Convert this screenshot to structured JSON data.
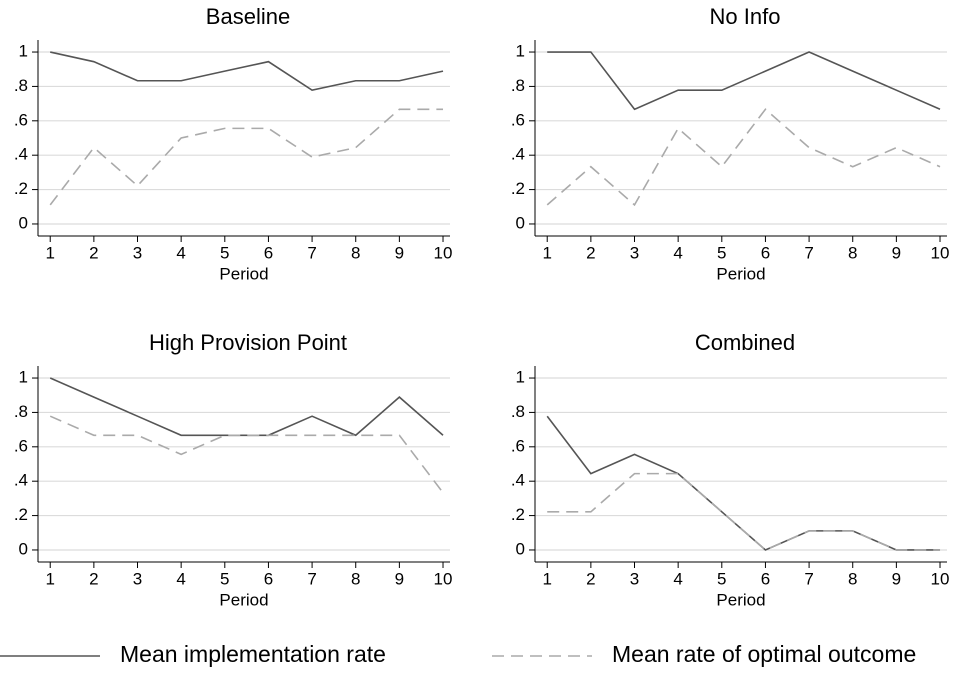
{
  "chart_data": [
    {
      "type": "line",
      "title": "Baseline",
      "xlabel": "Period",
      "x": [
        1,
        2,
        3,
        4,
        5,
        6,
        7,
        8,
        9,
        10
      ],
      "xlim": [
        0.72,
        10.16
      ],
      "xticks": [
        1,
        2,
        3,
        4,
        5,
        6,
        7,
        8,
        9,
        10
      ],
      "ylim": [
        -0.07,
        1.07
      ],
      "yticks": [
        0,
        {
          "value": 0.2,
          "label": ".2"
        },
        {
          "value": 0.4,
          "label": ".4"
        },
        {
          "value": 0.6,
          "label": ".6"
        },
        {
          "value": 0.8,
          "label": ".8"
        },
        1
      ],
      "grid": true,
      "series": [
        {
          "name": "Mean implementation rate",
          "color": "#555555",
          "values": [
            1,
            0.944,
            0.833,
            0.833,
            0.889,
            0.944,
            0.778,
            0.833,
            0.833,
            0.889
          ]
        },
        {
          "name": "Mean rate of optimal outcome",
          "color": "#aaaaaa",
          "values": [
            0.111,
            0.444,
            0.222,
            0.5,
            0.556,
            0.556,
            0.389,
            0.444,
            0.667,
            0.667
          ]
        }
      ]
    },
    {
      "type": "line",
      "title": "No Info",
      "xlabel": "Period",
      "x": [
        1,
        2,
        3,
        4,
        5,
        6,
        7,
        8,
        9,
        10
      ],
      "xlim": [
        0.72,
        10.16
      ],
      "xticks": [
        1,
        2,
        3,
        4,
        5,
        6,
        7,
        8,
        9,
        10
      ],
      "ylim": [
        -0.07,
        1.07
      ],
      "yticks": [
        0,
        {
          "value": 0.2,
          "label": ".2"
        },
        {
          "value": 0.4,
          "label": ".4"
        },
        {
          "value": 0.6,
          "label": ".6"
        },
        {
          "value": 0.8,
          "label": ".8"
        },
        1
      ],
      "grid": true,
      "series": [
        {
          "color": "#555555",
          "values": [
            1,
            1,
            0.667,
            0.778,
            0.778,
            0.889,
            1,
            0.889,
            0.778,
            0.667
          ]
        },
        {
          "color": "#aaaaaa",
          "values": [
            0.111,
            0.333,
            0.111,
            0.556,
            0.333,
            0.667,
            0.444,
            0.333,
            0.444,
            0.333
          ]
        }
      ]
    },
    {
      "type": "line",
      "title": "High Provision Point",
      "xlabel": "Period",
      "x": [
        1,
        2,
        3,
        4,
        5,
        6,
        7,
        8,
        9,
        10
      ],
      "xlim": [
        0.72,
        10.16
      ],
      "xticks": [
        1,
        2,
        3,
        4,
        5,
        6,
        7,
        8,
        9,
        10
      ],
      "ylim": [
        -0.07,
        1.07
      ],
      "yticks": [
        0,
        {
          "value": 0.2,
          "label": ".2"
        },
        {
          "value": 0.4,
          "label": ".4"
        },
        {
          "value": 0.6,
          "label": ".6"
        },
        {
          "value": 0.8,
          "label": ".8"
        },
        1
      ],
      "grid": true,
      "series": [
        {
          "color": "#555555",
          "values": [
            1,
            0.889,
            0.778,
            0.667,
            0.667,
            0.667,
            0.778,
            0.667,
            0.889,
            0.667
          ]
        },
        {
          "color": "#aaaaaa",
          "values": [
            0.778,
            0.667,
            0.667,
            0.556,
            0.667,
            0.667,
            0.667,
            0.667,
            0.667,
            0.333
          ]
        }
      ]
    },
    {
      "type": "line",
      "title": "Combined",
      "xlabel": "Period",
      "x": [
        1,
        2,
        3,
        4,
        5,
        6,
        7,
        8,
        9,
        10
      ],
      "xlim": [
        0.72,
        10.16
      ],
      "xticks": [
        1,
        2,
        3,
        4,
        5,
        6,
        7,
        8,
        9,
        10
      ],
      "ylim": [
        -0.07,
        1.07
      ],
      "yticks": [
        0,
        {
          "value": 0.2,
          "label": ".2"
        },
        {
          "value": 0.4,
          "label": ".4"
        },
        {
          "value": 0.6,
          "label": ".6"
        },
        {
          "value": 0.8,
          "label": ".8"
        },
        1
      ],
      "grid": true,
      "series": [
        {
          "color": "#555555",
          "values": [
            0.778,
            0.444,
            0.556,
            0.444,
            0.222,
            0,
            0.111,
            0.111,
            0,
            0
          ]
        },
        {
          "color": "#aaaaaa",
          "values": [
            0.222,
            0.222,
            0.444,
            0.444,
            0.222,
            0,
            0.111,
            0.111,
            0,
            0
          ]
        }
      ]
    }
  ]
}
